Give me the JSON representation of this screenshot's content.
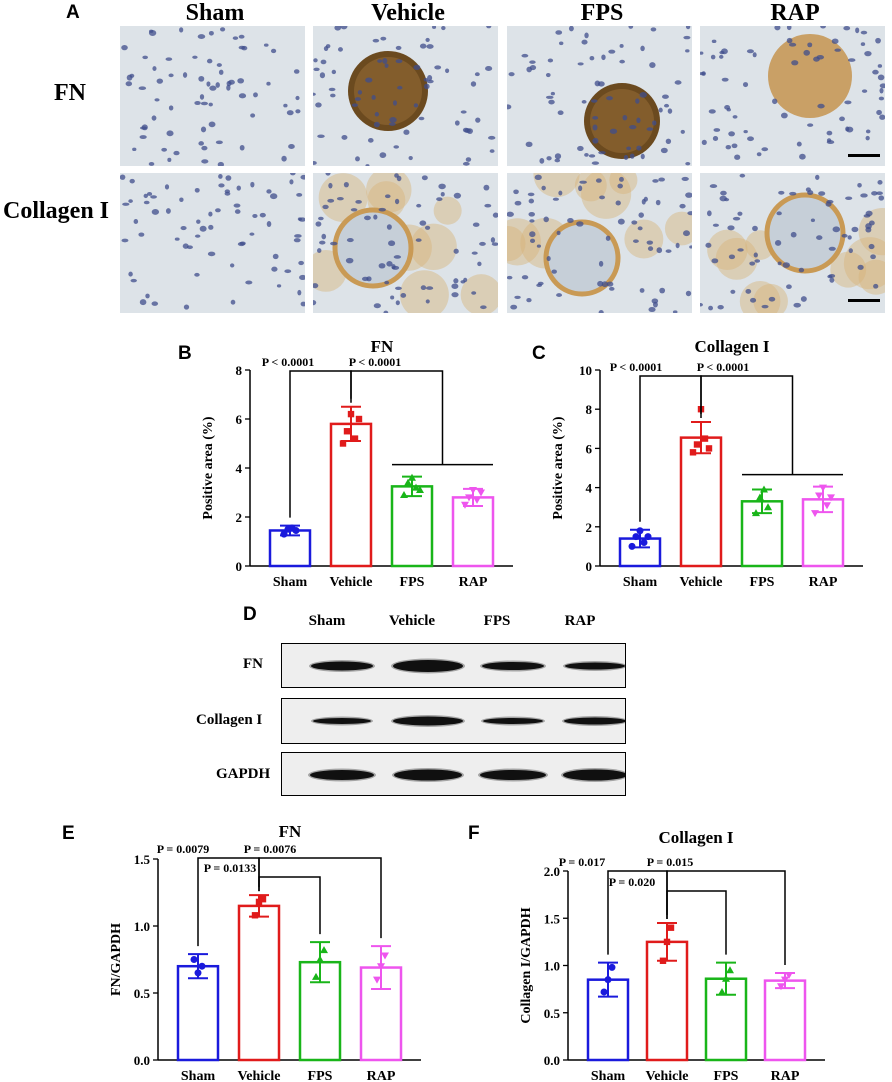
{
  "panels": {
    "A": "A",
    "B": "B",
    "C": "C",
    "D": "D",
    "E": "E",
    "F": "F"
  },
  "histology": {
    "columns": [
      "Sham",
      "Vehicle",
      "FPS",
      "RAP"
    ],
    "rows": [
      "FN",
      "Collagen I"
    ]
  },
  "western": {
    "columns": [
      "Sham",
      "Vehicle",
      "FPS",
      "RAP"
    ],
    "rows": [
      "FN",
      "Collagen I",
      "GAPDH"
    ]
  },
  "colors": {
    "Sham": "#1a1adc",
    "Vehicle": "#e01b1b",
    "FPS": "#19b519",
    "RAP": "#ee55ee"
  },
  "chart_data": [
    {
      "id": "B",
      "type": "bar",
      "title": "FN",
      "xlabel": "",
      "ylabel": "Positive area (%)",
      "categories": [
        "Sham",
        "Vehicle",
        "FPS",
        "RAP"
      ],
      "values": [
        1.45,
        5.8,
        3.25,
        2.8
      ],
      "errors": [
        0.2,
        0.7,
        0.4,
        0.35
      ],
      "points": [
        [
          1.3,
          1.5,
          1.55,
          1.45
        ],
        [
          5.0,
          5.5,
          6.2,
          5.2,
          6.0
        ],
        [
          2.9,
          3.4,
          3.6,
          3.2,
          3.1
        ],
        [
          2.5,
          2.8,
          3.1,
          2.7,
          3.0
        ]
      ],
      "ylim": [
        0,
        8
      ],
      "yticks": [
        0,
        2,
        4,
        6,
        8
      ],
      "ytick_labels": [
        "0",
        "2",
        "4",
        "6",
        "8"
      ],
      "annotations": [
        "P < 0.0001",
        "P < 0.0001"
      ]
    },
    {
      "id": "C",
      "type": "bar",
      "title": "Collagen I",
      "xlabel": "",
      "ylabel": "Positive area (%)",
      "categories": [
        "Sham",
        "Vehicle",
        "FPS",
        "RAP"
      ],
      "values": [
        1.4,
        6.55,
        3.3,
        3.4
      ],
      "errors": [
        0.45,
        0.8,
        0.6,
        0.65
      ],
      "points": [
        [
          1.0,
          1.5,
          1.8,
          1.2,
          1.5
        ],
        [
          5.8,
          6.2,
          8.0,
          6.5,
          6.0
        ],
        [
          2.7,
          3.5,
          3.9,
          3.0
        ],
        [
          2.7,
          3.6,
          4.0,
          3.1,
          3.5
        ]
      ],
      "ylim": [
        0,
        10
      ],
      "yticks": [
        0,
        2,
        4,
        6,
        8,
        10
      ],
      "ytick_labels": [
        "0",
        "2",
        "4",
        "6",
        "8",
        "10"
      ],
      "annotations": [
        "P < 0.0001",
        "P < 0.0001"
      ]
    },
    {
      "id": "E",
      "type": "bar",
      "title": "FN",
      "xlabel": "",
      "ylabel": "FN/GAPDH",
      "categories": [
        "Sham",
        "Vehicle",
        "FPS",
        "RAP"
      ],
      "values": [
        0.7,
        1.15,
        0.73,
        0.69
      ],
      "errors": [
        0.09,
        0.08,
        0.15,
        0.16
      ],
      "points": [
        [
          0.75,
          0.65,
          0.7
        ],
        [
          1.08,
          1.18,
          1.2
        ],
        [
          0.62,
          0.75,
          0.82
        ],
        [
          0.6,
          0.7,
          0.78
        ]
      ],
      "ylim": [
        0,
        1.5
      ],
      "yticks": [
        0,
        0.5,
        1.0,
        1.5
      ],
      "ytick_labels": [
        "0.0",
        "0.5",
        "1.0",
        "1.5"
      ],
      "annotations": [
        "P = 0.0079",
        "P = 0.0076",
        "P = 0.0133"
      ]
    },
    {
      "id": "F",
      "type": "bar",
      "title": "Collagen I",
      "xlabel": "",
      "ylabel": "Collagen I/GAPDH",
      "categories": [
        "Sham",
        "Vehicle",
        "FPS",
        "RAP"
      ],
      "values": [
        0.85,
        1.25,
        0.86,
        0.84
      ],
      "errors": [
        0.18,
        0.2,
        0.17,
        0.08
      ],
      "points": [
        [
          0.72,
          0.85,
          0.98
        ],
        [
          1.05,
          1.25,
          1.4
        ],
        [
          0.72,
          0.86,
          0.95
        ],
        [
          0.78,
          0.85,
          0.9
        ]
      ],
      "ylim": [
        0,
        2.0
      ],
      "yticks": [
        0,
        0.5,
        1.0,
        1.5,
        2.0
      ],
      "ytick_labels": [
        "0.0",
        "0.5",
        "1.0",
        "1.5",
        "2.0"
      ],
      "annotations": [
        "P = 0.017",
        "P = 0.015",
        "P = 0.020"
      ]
    }
  ]
}
